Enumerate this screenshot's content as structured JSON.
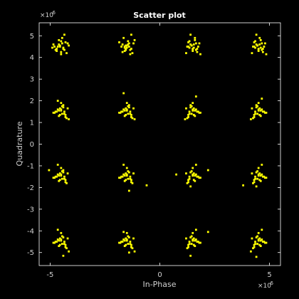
{
  "chart_data": {
    "type": "scatter",
    "title": "Scatter plot",
    "xlabel": "In-Phase",
    "ylabel": "Quadrature",
    "x_multiplier": "×10",
    "x_exponent": "-6",
    "y_multiplier": "×10",
    "y_exponent": "-6",
    "xlim": [
      -5.5,
      5.5
    ],
    "ylim": [
      -5.6,
      5.6
    ],
    "xticks": [
      -5,
      0,
      5
    ],
    "xtick_labels": [
      "-5",
      "0",
      "5"
    ],
    "yticks": [
      5,
      4,
      3,
      2,
      1,
      0,
      -1,
      -2,
      -3,
      -4,
      -5
    ],
    "ytick_labels": [
      "5",
      "4",
      "3",
      "2",
      "1",
      "0",
      "-1",
      "-2",
      "-3",
      "-4",
      "-5"
    ],
    "grid": false,
    "colors": {
      "background": "#000000",
      "axes": "#ffffff",
      "marker": "#ffff00"
    },
    "series": [
      {
        "marker": "square",
        "x": [
          -4.55,
          -4.35,
          -4.8,
          -4.2,
          -4.7,
          -4.5,
          -4.4,
          -4.6,
          -4.9,
          -4.25,
          -4.45,
          -4.65,
          -4.3,
          -4.75,
          -4.5,
          -4.15,
          -4.6,
          -4.4,
          -4.85,
          -4.5,
          -4.35,
          -4.7,
          -4.45,
          -4.55,
          -1.55,
          -1.35,
          -1.75,
          -1.2,
          -1.6,
          -1.45,
          -1.3,
          -1.7,
          -1.5,
          -1.25,
          -1.65,
          -1.4,
          -1.85,
          -1.55,
          -1.35,
          -1.5,
          -1.15,
          -1.6,
          -1.45,
          -1.7,
          -1.3,
          -1.55,
          -1.4,
          -1.6,
          1.45,
          1.65,
          1.25,
          1.8,
          1.5,
          1.35,
          1.7,
          1.4,
          1.55,
          1.2,
          1.6,
          1.75,
          1.3,
          1.5,
          1.85,
          1.45,
          1.6,
          1.35,
          1.55,
          1.7,
          1.4,
          1.5,
          1.65,
          1.3,
          4.45,
          4.65,
          4.25,
          4.8,
          4.5,
          4.35,
          4.7,
          4.4,
          4.6,
          4.2,
          4.55,
          4.75,
          4.3,
          4.5,
          4.85,
          4.45,
          4.6,
          4.35,
          4.55,
          4.7,
          4.4,
          4.5,
          4.65,
          4.3,
          -4.5,
          -4.3,
          -4.75,
          -4.2,
          -4.6,
          -4.45,
          -4.35,
          -4.65,
          -4.85,
          -4.25,
          -4.5,
          -4.7,
          -4.4,
          -4.55,
          -4.15,
          -4.6,
          -4.4,
          -4.8,
          -4.5,
          -4.3,
          -4.65,
          -4.45,
          -4.55,
          -4.35,
          -1.5,
          -1.3,
          -1.75,
          -1.2,
          -1.6,
          -1.45,
          -1.35,
          -1.65,
          -1.85,
          -1.25,
          -1.5,
          -1.7,
          -1.4,
          -1.55,
          -1.15,
          -1.6,
          -1.4,
          -1.8,
          -1.5,
          -1.3,
          -1.65,
          -1.45,
          -1.55,
          -1.35,
          1.5,
          1.3,
          1.75,
          1.2,
          1.6,
          1.45,
          1.35,
          1.65,
          1.85,
          1.25,
          1.5,
          1.7,
          1.4,
          1.55,
          1.15,
          1.6,
          1.4,
          1.8,
          1.5,
          1.3,
          1.65,
          1.45,
          1.55,
          1.35,
          4.5,
          4.3,
          4.75,
          4.2,
          4.6,
          4.45,
          4.35,
          4.65,
          4.85,
          4.25,
          4.5,
          4.7,
          4.4,
          4.55,
          4.15,
          4.6,
          4.4,
          4.8,
          4.5,
          4.3,
          4.65,
          4.45,
          4.55,
          4.35,
          -4.5,
          -4.3,
          -4.75,
          -4.2,
          -4.6,
          -4.45,
          -4.35,
          -4.65,
          -4.85,
          -4.25,
          -4.5,
          -4.7,
          -4.4,
          -4.55,
          -5.05,
          -4.6,
          -4.4,
          -4.8,
          -4.5,
          -4.3,
          -4.65,
          -4.45,
          -4.55,
          -4.35,
          -1.5,
          -1.3,
          -1.75,
          -1.2,
          -1.6,
          -1.45,
          -1.35,
          -1.65,
          -1.85,
          -1.25,
          -1.5,
          -1.7,
          -1.4,
          -1.55,
          -0.6,
          -1.6,
          -1.4,
          -1.8,
          -1.5,
          -1.3,
          -1.65,
          -1.45,
          -1.55,
          -1.35,
          1.5,
          1.3,
          1.75,
          1.2,
          1.6,
          1.45,
          1.35,
          1.65,
          1.85,
          1.25,
          1.5,
          1.7,
          1.4,
          1.55,
          0.75,
          1.6,
          1.4,
          1.8,
          1.5,
          1.3,
          1.65,
          2.2,
          1.55,
          1.35,
          4.5,
          4.3,
          4.75,
          4.2,
          4.6,
          4.45,
          4.35,
          4.65,
          4.85,
          4.25,
          4.5,
          4.7,
          4.4,
          4.55,
          3.8,
          4.6,
          4.4,
          4.8,
          4.5,
          4.3,
          4.65,
          4.45,
          4.55,
          4.35,
          -4.5,
          -4.3,
          -4.75,
          -4.2,
          -4.6,
          -4.45,
          -4.35,
          -4.65,
          -4.85,
          -4.25,
          -4.5,
          -4.7,
          -4.4,
          -4.55,
          -4.15,
          -4.6,
          -4.4,
          -4.8,
          -4.5,
          -4.3,
          -4.65,
          -4.45,
          -4.55,
          -4.35,
          -1.5,
          -1.3,
          -1.75,
          -1.2,
          -1.6,
          -1.45,
          -1.35,
          -1.65,
          -1.85,
          -1.25,
          -1.5,
          -1.7,
          -1.4,
          -1.55,
          -1.15,
          -1.6,
          -1.4,
          -1.8,
          -1.5,
          -1.3,
          -1.65,
          -1.45,
          -1.55,
          -1.35,
          1.5,
          1.3,
          1.75,
          1.2,
          1.6,
          1.45,
          1.35,
          1.65,
          1.85,
          1.25,
          1.5,
          1.7,
          1.4,
          1.55,
          2.2,
          1.6,
          1.4,
          1.8,
          1.5,
          1.3,
          1.65,
          1.45,
          1.55,
          1.35,
          4.5,
          4.3,
          4.75,
          4.2,
          4.6,
          4.45,
          4.35,
          4.65,
          4.85,
          4.25,
          4.5,
          4.7,
          4.4,
          4.55,
          4.15,
          4.6,
          4.4,
          4.8,
          4.5,
          4.3,
          4.65,
          4.45,
          4.55,
          4.35
        ],
        "y": [
          4.55,
          4.35,
          4.5,
          4.65,
          4.3,
          4.75,
          4.4,
          4.6,
          4.45,
          4.2,
          4.9,
          4.5,
          4.7,
          4.35,
          4.15,
          4.55,
          4.8,
          4.45,
          4.6,
          4.25,
          5.05,
          4.4,
          4.65,
          4.5,
          4.55,
          4.35,
          4.5,
          4.65,
          4.3,
          4.75,
          4.4,
          4.6,
          4.45,
          4.2,
          4.9,
          4.5,
          4.7,
          4.35,
          4.15,
          4.55,
          4.8,
          4.45,
          4.6,
          4.25,
          5.05,
          4.4,
          4.65,
          4.5,
          4.55,
          4.35,
          4.5,
          4.65,
          4.3,
          4.75,
          4.4,
          4.6,
          4.45,
          4.2,
          4.9,
          4.5,
          4.7,
          4.35,
          4.15,
          4.55,
          4.8,
          4.45,
          4.6,
          4.25,
          5.05,
          4.4,
          4.65,
          4.5,
          4.55,
          4.35,
          4.5,
          4.65,
          4.3,
          4.75,
          4.4,
          4.6,
          4.45,
          4.2,
          4.9,
          4.5,
          4.7,
          4.35,
          4.15,
          4.55,
          4.8,
          4.45,
          4.6,
          4.25,
          5.05,
          4.4,
          4.65,
          4.5,
          1.55,
          1.35,
          1.5,
          1.65,
          1.3,
          1.75,
          1.4,
          1.6,
          1.45,
          1.2,
          1.9,
          1.5,
          1.7,
          1.35,
          1.15,
          1.55,
          1.8,
          1.45,
          1.6,
          1.25,
          2.0,
          1.4,
          1.65,
          1.5,
          1.55,
          1.35,
          1.5,
          1.65,
          1.3,
          1.75,
          1.4,
          1.6,
          1.45,
          1.2,
          1.9,
          1.5,
          1.7,
          1.35,
          1.15,
          1.55,
          1.8,
          1.45,
          1.6,
          1.25,
          2.35,
          1.4,
          1.65,
          1.5,
          1.55,
          1.35,
          1.5,
          1.65,
          1.3,
          1.75,
          1.4,
          1.6,
          1.45,
          1.2,
          1.9,
          1.5,
          1.7,
          1.35,
          1.15,
          1.55,
          1.8,
          1.45,
          1.6,
          1.25,
          2.2,
          1.4,
          1.65,
          1.5,
          1.55,
          1.35,
          1.5,
          1.65,
          1.3,
          1.75,
          1.4,
          1.6,
          1.45,
          1.2,
          1.9,
          1.5,
          1.7,
          1.35,
          1.15,
          1.55,
          1.8,
          1.45,
          1.6,
          1.25,
          2.1,
          1.4,
          1.65,
          1.5,
          -1.45,
          -1.65,
          -1.5,
          -1.35,
          -1.7,
          -1.25,
          -1.6,
          -1.4,
          -1.55,
          -1.8,
          -1.1,
          -1.5,
          -1.3,
          -1.65,
          -1.2,
          -1.45,
          -1.2,
          -1.55,
          -1.4,
          -1.75,
          -0.95,
          -1.6,
          -1.35,
          -1.5,
          -1.45,
          -1.65,
          -1.5,
          -1.35,
          -1.7,
          -1.25,
          -1.6,
          -1.4,
          -1.55,
          -1.8,
          -1.1,
          -1.5,
          -1.3,
          -1.65,
          -1.9,
          -1.45,
          -2.15,
          -1.55,
          -1.4,
          -1.75,
          -0.95,
          -1.6,
          -1.35,
          -1.5,
          -1.45,
          -1.65,
          -1.5,
          -1.35,
          -1.7,
          -1.25,
          -1.6,
          -1.4,
          -1.55,
          -1.8,
          -1.1,
          -1.5,
          -1.3,
          -1.65,
          -1.4,
          -1.45,
          -1.95,
          -1.55,
          -1.4,
          -1.75,
          -0.95,
          -1.2,
          -1.35,
          -1.5,
          -1.45,
          -1.65,
          -1.5,
          -1.35,
          -1.7,
          -1.25,
          -1.6,
          -1.4,
          -1.55,
          -1.8,
          -1.1,
          -1.5,
          -1.3,
          -1.65,
          -1.9,
          -1.45,
          -1.95,
          -1.55,
          -1.4,
          -1.75,
          -0.95,
          -1.6,
          -1.35,
          -1.5,
          -4.45,
          -4.65,
          -4.5,
          -4.35,
          -4.7,
          -4.25,
          -4.6,
          -4.4,
          -4.55,
          -4.8,
          -4.1,
          -4.5,
          -4.3,
          -4.65,
          -4.95,
          -4.45,
          -5.15,
          -4.55,
          -4.4,
          -4.75,
          -3.95,
          -4.6,
          -4.35,
          -4.5,
          -4.45,
          -4.65,
          -4.5,
          -4.35,
          -4.7,
          -4.25,
          -4.6,
          -4.4,
          -4.55,
          -4.8,
          -4.1,
          -4.5,
          -4.3,
          -4.65,
          -4.95,
          -4.45,
          -5.0,
          -4.55,
          -4.4,
          -4.75,
          -4.05,
          -4.6,
          -4.35,
          -4.5,
          -4.45,
          -4.65,
          -4.5,
          -4.35,
          -4.7,
          -4.25,
          -4.6,
          -4.4,
          -4.55,
          -4.8,
          -4.1,
          -4.5,
          -4.3,
          -4.65,
          -4.05,
          -4.45,
          -5.15,
          -4.55,
          -4.4,
          -4.75,
          -3.95,
          -4.6,
          -4.35,
          -4.5,
          -4.45,
          -4.65,
          -4.5,
          -4.35,
          -4.7,
          -4.25,
          -4.6,
          -4.4,
          -4.55,
          -4.8,
          -4.1,
          -4.5,
          -4.3,
          -4.65,
          -4.95,
          -4.45,
          -5.2,
          -4.55,
          -4.4,
          -4.75,
          -3.95,
          -4.6,
          -4.35,
          -4.5
        ]
      }
    ]
  }
}
